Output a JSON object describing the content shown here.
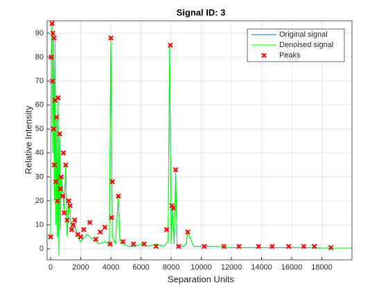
{
  "chart_data": {
    "type": "line",
    "title": "Signal ID: 3",
    "xlabel": "Separation Units",
    "ylabel": "Relative Intensity",
    "x": [
      0,
      50,
      100,
      150,
      200,
      250,
      300,
      350,
      400,
      450,
      500,
      550,
      600,
      650,
      700,
      800,
      900,
      1000,
      1100,
      1200,
      1400,
      1600,
      1800,
      2000,
      2400,
      2800,
      3200,
      3600,
      3900,
      4000,
      4100,
      4300,
      4500,
      4600,
      4800,
      5200,
      5600,
      6000,
      6500,
      7000,
      7500,
      7800,
      7900,
      8000,
      8100,
      8200,
      8300,
      8400,
      8800,
      9000,
      9100,
      9500,
      10000,
      11000,
      12000,
      13000,
      14000,
      15000,
      16000,
      17000,
      18000,
      19000,
      20000
    ],
    "series": [
      {
        "name": "Original signal",
        "color": "#0072bd",
        "values": [
          5,
          80,
          94,
          40,
          90,
          20,
          88,
          10,
          55,
          5,
          62,
          -3,
          48,
          8,
          30,
          25,
          15,
          35,
          5,
          20,
          8,
          10,
          5,
          3,
          6,
          4,
          2,
          3,
          2,
          88,
          5,
          2,
          22,
          3,
          2,
          1,
          1,
          2,
          1,
          2,
          1,
          3,
          85,
          2,
          17,
          2,
          33,
          1,
          1,
          2,
          7,
          1,
          1,
          1,
          0.5,
          0.5,
          0.5,
          0.5,
          0.5,
          0.5,
          0.3,
          0.3,
          0.3
        ]
      },
      {
        "name": "Denoised signal",
        "color": "#00ff00",
        "values": [
          5,
          80,
          94,
          40,
          90,
          20,
          88,
          10,
          55,
          5,
          62,
          -3,
          48,
          8,
          30,
          25,
          15,
          35,
          5,
          20,
          8,
          10,
          5,
          3,
          6,
          4,
          2,
          3,
          2,
          88,
          5,
          2,
          22,
          3,
          2,
          1,
          1,
          2,
          1,
          2,
          1,
          3,
          85,
          2,
          17,
          2,
          33,
          1,
          1,
          2,
          7,
          1,
          1,
          1,
          0.5,
          0.5,
          0.5,
          0.5,
          0.5,
          0.5,
          0.3,
          0.3,
          0.3
        ]
      }
    ],
    "peaks": {
      "name": "Peaks",
      "color": "#ff0000",
      "x": [
        0,
        50,
        100,
        120,
        150,
        200,
        230,
        250,
        300,
        350,
        400,
        450,
        500,
        600,
        650,
        700,
        800,
        850,
        900,
        1000,
        1100,
        1200,
        1300,
        1400,
        1500,
        1600,
        1800,
        2000,
        2200,
        2600,
        3000,
        3300,
        3600,
        3950,
        4000,
        4050,
        4100,
        4500,
        4800,
        5500,
        6200,
        7000,
        7700,
        7950,
        8050,
        8150,
        8300,
        8500,
        9100,
        10200,
        11500,
        12500,
        13800,
        14700,
        15800,
        16800,
        17500,
        18600
      ],
      "values": [
        5,
        80,
        94,
        70,
        90,
        50,
        88,
        35,
        62,
        28,
        55,
        20,
        63,
        48,
        25,
        30,
        22,
        40,
        15,
        35,
        12,
        20,
        18,
        8,
        10,
        12,
        6,
        5,
        8,
        11,
        4,
        7,
        9,
        2,
        88,
        13,
        28,
        22,
        3,
        2,
        2,
        1,
        8,
        85,
        18,
        17,
        33,
        1,
        7,
        1,
        1,
        1,
        1,
        1,
        1,
        1,
        1,
        0.5
      ]
    },
    "xlim": [
      -230,
      20000
    ],
    "ylim": [
      -4.6,
      95.2
    ],
    "xticks": [
      0,
      2000,
      4000,
      6000,
      8000,
      10000,
      12000,
      14000,
      16000,
      18000
    ],
    "yticks": [
      0,
      10,
      20,
      30,
      40,
      50,
      60,
      70,
      80,
      90
    ],
    "grid": true,
    "legend": "northeast"
  }
}
